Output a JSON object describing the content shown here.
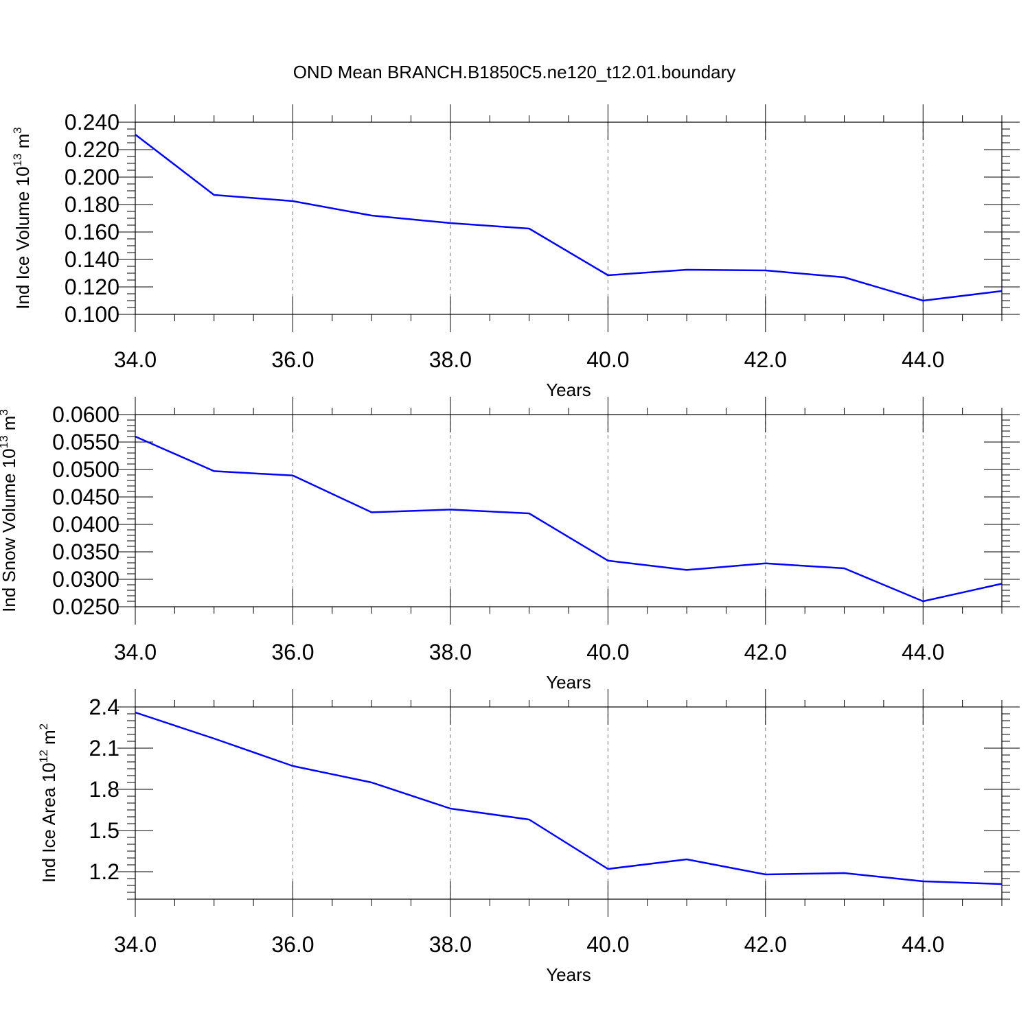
{
  "title": "OND Mean BRANCH.B1850C5.ne120_t12.01.boundary",
  "chart_data": [
    {
      "type": "line",
      "xlabel": "Years",
      "ylabel": "Ind Ice Volume 10",
      "ylabel_exp": "13",
      "ylabel_unit": " m",
      "ylabel_unit_exp": "3",
      "xlim": [
        34,
        45
      ],
      "ylim": [
        0.1,
        0.24
      ],
      "xticks": [
        34,
        36,
        38,
        40,
        42,
        44
      ],
      "xtick_labels": [
        "34.0",
        "36.0",
        "38.0",
        "40.0",
        "42.0",
        "44.0"
      ],
      "yticks": [
        0.1,
        0.12,
        0.14,
        0.16,
        0.18,
        0.2,
        0.22,
        0.24
      ],
      "ytick_labels": [
        "0.100",
        "0.120",
        "0.140",
        "0.160",
        "0.180",
        "0.200",
        "0.220",
        "0.240"
      ],
      "grid": "vertical dashed at major x ticks",
      "color": "#0000ff",
      "x": [
        34,
        35,
        36,
        37,
        38,
        39,
        40,
        41,
        42,
        43,
        44,
        45
      ],
      "values": [
        0.231,
        0.187,
        0.1825,
        0.172,
        0.1665,
        0.1625,
        0.1285,
        0.1325,
        0.132,
        0.127,
        0.11,
        0.117
      ]
    },
    {
      "type": "line",
      "xlabel": "Years",
      "ylabel": "Ind Snow Volume 10",
      "ylabel_exp": "13",
      "ylabel_unit": " m",
      "ylabel_unit_exp": "3",
      "xlim": [
        34,
        45
      ],
      "ylim": [
        0.025,
        0.06
      ],
      "xticks": [
        34,
        36,
        38,
        40,
        42,
        44
      ],
      "xtick_labels": [
        "34.0",
        "36.0",
        "38.0",
        "40.0",
        "42.0",
        "44.0"
      ],
      "yticks": [
        0.025,
        0.03,
        0.035,
        0.04,
        0.045,
        0.05,
        0.055,
        0.06
      ],
      "ytick_labels": [
        "0.0250",
        "0.0300",
        "0.0350",
        "0.0400",
        "0.0450",
        "0.0500",
        "0.0550",
        "0.0600"
      ],
      "grid": "vertical dashed at major x ticks",
      "color": "#0000ff",
      "x": [
        34,
        35,
        36,
        37,
        38,
        39,
        40,
        41,
        42,
        43,
        44,
        45
      ],
      "values": [
        0.056,
        0.0497,
        0.0489,
        0.0422,
        0.0427,
        0.042,
        0.0334,
        0.0317,
        0.0329,
        0.032,
        0.026,
        0.0292
      ]
    },
    {
      "type": "line",
      "xlabel": "Years",
      "ylabel": "Ind Ice Area 10",
      "ylabel_exp": "12",
      "ylabel_unit": " m",
      "ylabel_unit_exp": "2",
      "xlim": [
        34,
        45
      ],
      "ylim": [
        1.0,
        2.4
      ],
      "xticks": [
        34,
        36,
        38,
        40,
        42,
        44
      ],
      "xtick_labels": [
        "34.0",
        "36.0",
        "38.0",
        "40.0",
        "42.0",
        "44.0"
      ],
      "yticks": [
        1.2,
        1.5,
        1.8,
        2.1,
        2.4
      ],
      "ytick_labels": [
        "1.2",
        "1.5",
        "1.8",
        "2.1",
        "2.4"
      ],
      "grid": "vertical dashed at major x ticks",
      "color": "#0000ff",
      "x": [
        34,
        35,
        36,
        37,
        38,
        39,
        40,
        41,
        42,
        43,
        44,
        45
      ],
      "values": [
        2.36,
        2.17,
        1.97,
        1.85,
        1.66,
        1.58,
        1.22,
        1.29,
        1.18,
        1.19,
        1.13,
        1.11
      ]
    }
  ]
}
